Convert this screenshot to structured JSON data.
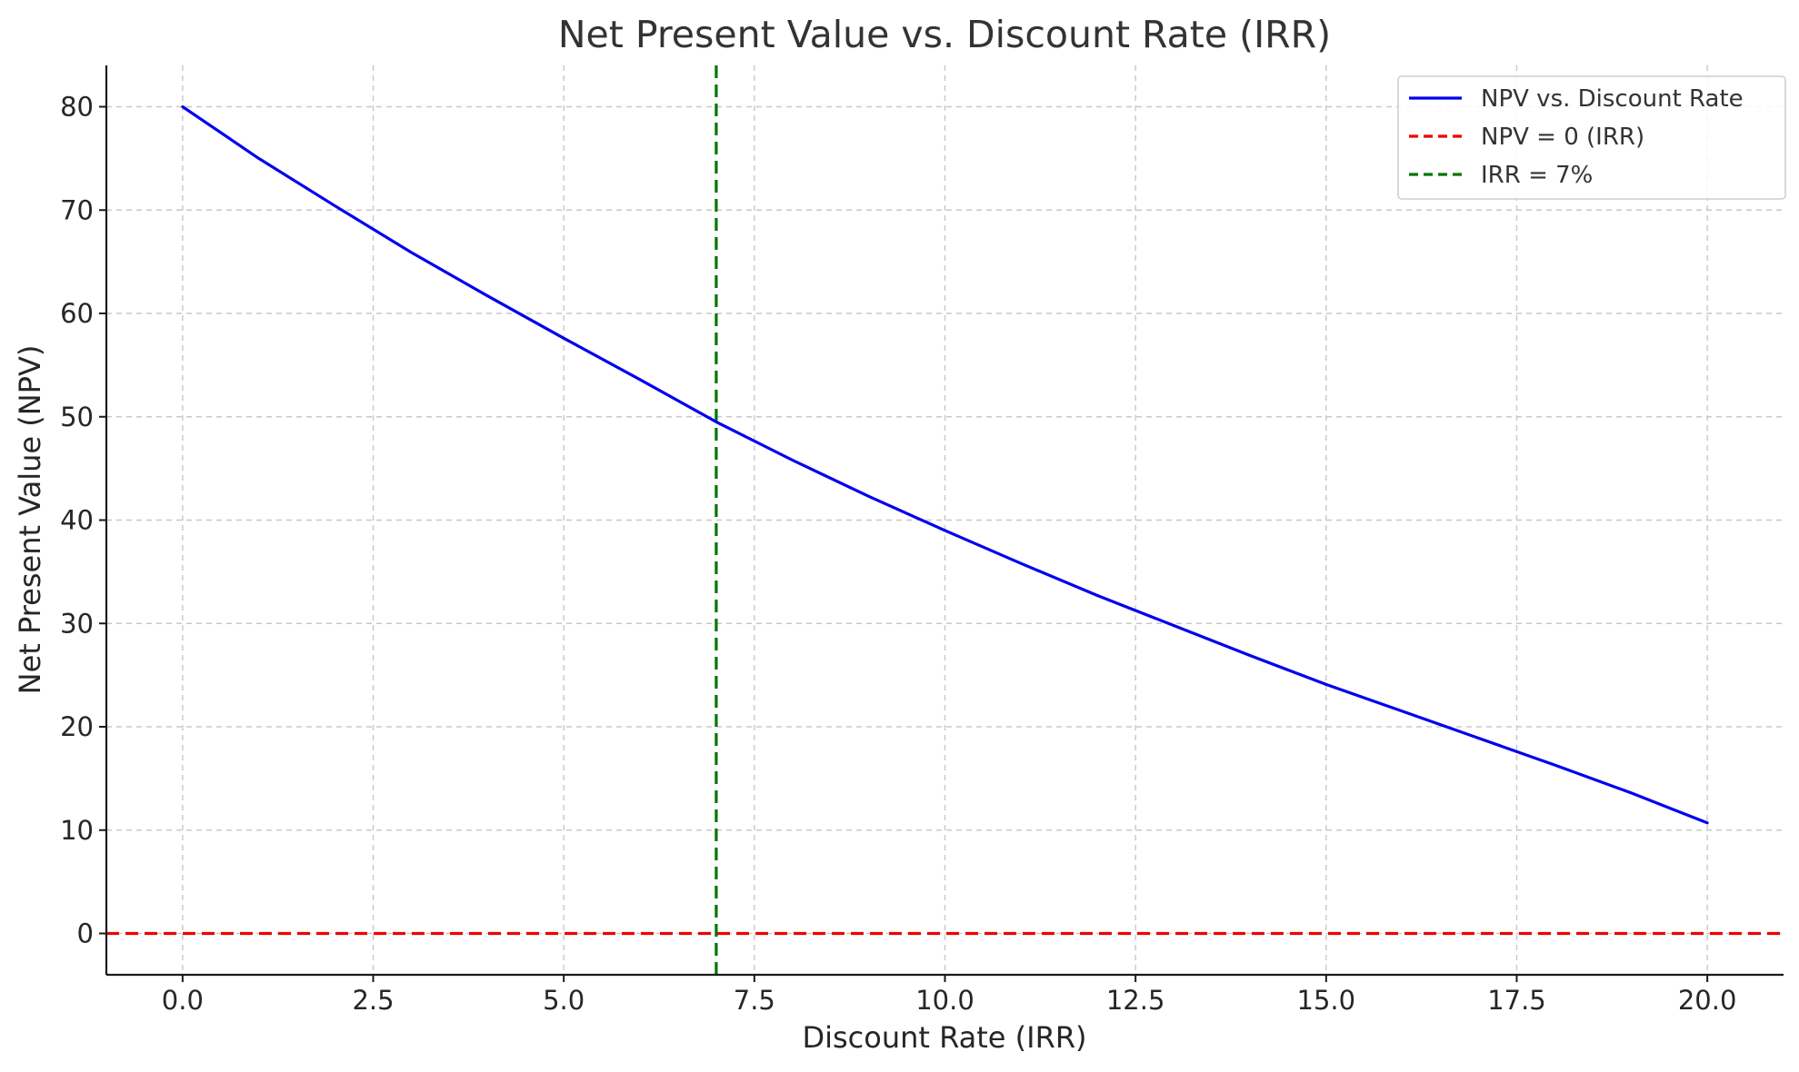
{
  "chart_data": {
    "type": "line",
    "title": "Net Present Value vs. Discount Rate (IRR)",
    "xlabel": "Discount Rate (IRR)",
    "ylabel": "Net Present Value (NPV)",
    "xlim": [
      -1,
      21
    ],
    "ylim": [
      -4,
      84
    ],
    "xticks": [
      0,
      2.5,
      5,
      7.5,
      10,
      12.5,
      15,
      17.5,
      20
    ],
    "xtick_labels": [
      "0.0",
      "2.5",
      "5.0",
      "7.5",
      "10.0",
      "12.5",
      "15.0",
      "17.5",
      "20.0"
    ],
    "yticks": [
      0,
      10,
      20,
      30,
      40,
      50,
      60,
      70,
      80
    ],
    "ytick_labels": [
      "0",
      "10",
      "20",
      "30",
      "40",
      "50",
      "60",
      "70",
      "80"
    ],
    "grid": true,
    "legend_position": "top-right",
    "series": [
      {
        "name": "NPV vs. Discount Rate",
        "color": "#0000ee",
        "style": "solid",
        "x": [
          0,
          1,
          2,
          3,
          4,
          5,
          6,
          7,
          8,
          9,
          10,
          11,
          12,
          13,
          14,
          15,
          16,
          17,
          18,
          19,
          20
        ],
        "y": [
          80.0,
          75.0,
          70.4,
          65.9,
          61.7,
          57.6,
          53.6,
          49.5,
          45.8,
          42.3,
          39.0,
          35.8,
          32.7,
          29.8,
          26.9,
          24.1,
          21.5,
          18.9,
          16.3,
          13.6,
          10.7
        ]
      }
    ],
    "reference_lines": [
      {
        "name": "NPV = 0 (IRR)",
        "orientation": "horizontal",
        "value": 0,
        "color": "#ee0000",
        "style": "dashed"
      },
      {
        "name": "IRR = 7%",
        "orientation": "vertical",
        "value": 7,
        "color": "#007700",
        "style": "dashed"
      }
    ]
  }
}
